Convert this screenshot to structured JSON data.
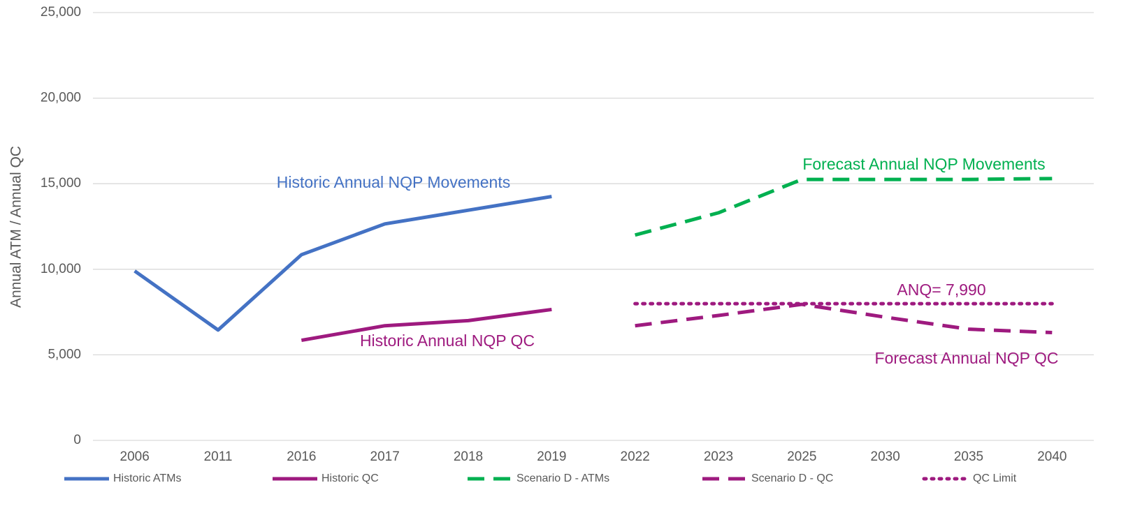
{
  "chart_data": {
    "type": "line",
    "ylabel": "Annual ATM / Annual QC",
    "categories": [
      "2006",
      "2011",
      "2016",
      "2017",
      "2018",
      "2019",
      "2022",
      "2023",
      "2025",
      "2030",
      "2035",
      "2040"
    ],
    "series": [
      {
        "name": "Historic ATMs",
        "color": "#4472c4",
        "style": "solid",
        "values": [
          9900,
          6450,
          10850,
          12650,
          13450,
          14250,
          null,
          null,
          null,
          null,
          null,
          null
        ]
      },
      {
        "name": "Historic QC",
        "color": "#9e1a7f",
        "style": "solid",
        "values": [
          null,
          null,
          5850,
          6700,
          7000,
          7650,
          null,
          null,
          null,
          null,
          null,
          null
        ]
      },
      {
        "name": "Scenario D - ATMs",
        "color": "#00b050",
        "style": "dash",
        "values": [
          null,
          null,
          null,
          null,
          null,
          null,
          12000,
          13300,
          15250,
          15250,
          15250,
          15300
        ]
      },
      {
        "name": "Scenario D - QC",
        "color": "#9e1a7f",
        "style": "dash",
        "values": [
          null,
          null,
          null,
          null,
          null,
          null,
          6700,
          7300,
          7950,
          7200,
          6500,
          6300
        ]
      },
      {
        "name": "QC Limit",
        "color": "#9e1a7f",
        "style": "dot",
        "values": [
          null,
          null,
          null,
          null,
          null,
          null,
          7990,
          7990,
          7990,
          7990,
          7990,
          7990
        ]
      }
    ],
    "annotations": [
      {
        "text": "Historic Annual NQP Movements",
        "color": "#4472c4"
      },
      {
        "text": "Historic Annual NQP QC",
        "color": "#9e1a7f"
      },
      {
        "text": "Forecast Annual NQP Movements",
        "color": "#00b050"
      },
      {
        "text": "ANQ= 7,990",
        "color": "#9e1a7f"
      },
      {
        "text": "Forecast Annual NQP QC",
        "color": "#9e1a7f"
      }
    ],
    "ylim": [
      0,
      25000
    ],
    "yticks": [
      0,
      {
        "value": 5000,
        "label": "5,000"
      },
      {
        "value": 10000,
        "label": "10,000"
      },
      {
        "value": 15000,
        "label": "15,000"
      },
      {
        "value": 20000,
        "label": "20,000"
      },
      {
        "value": 25000,
        "label": "25,000"
      }
    ],
    "grid": true,
    "legend": "bottom"
  }
}
